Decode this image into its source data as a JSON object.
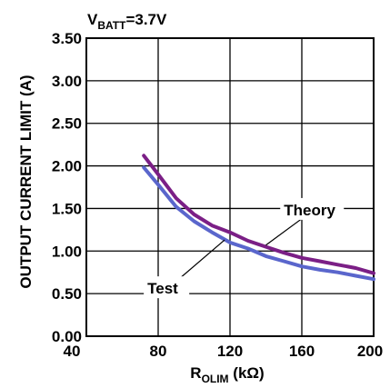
{
  "chart_data": {
    "type": "line",
    "title_main": "V",
    "title_sub": "BATT",
    "title_suffix": "=3.7V",
    "xlabel_main": "R",
    "xlabel_sub": "OLIM",
    "xlabel_suffix": " (kΩ)",
    "ylabel": "OUTPUT CURRENT LIMIT (A)",
    "xlim": [
      40,
      200
    ],
    "ylim": [
      0.0,
      3.5
    ],
    "x_ticks": [
      "40",
      "80",
      "120",
      "160",
      "200"
    ],
    "x_tick_values": [
      40,
      80,
      120,
      160,
      200
    ],
    "y_ticks": [
      "0.00",
      "0.50",
      "1.00",
      "1.50",
      "2.00",
      "2.50",
      "3.00",
      "3.50"
    ],
    "y_tick_values": [
      0,
      0.5,
      1.0,
      1.5,
      2.0,
      2.5,
      3.0,
      3.5
    ],
    "grid": true,
    "series": [
      {
        "name": "Theory",
        "color": "#7b1f86",
        "x": [
          72,
          80,
          90,
          100,
          110,
          120,
          130,
          140,
          150,
          160,
          170,
          180,
          190,
          200
        ],
        "y": [
          2.12,
          1.9,
          1.62,
          1.43,
          1.3,
          1.22,
          1.12,
          1.05,
          0.98,
          0.92,
          0.88,
          0.84,
          0.8,
          0.74
        ]
      },
      {
        "name": "Test",
        "color": "#5a66cc",
        "x": [
          72,
          80,
          90,
          100,
          110,
          120,
          130,
          140,
          150,
          160,
          170,
          180,
          190,
          200
        ],
        "y": [
          1.98,
          1.78,
          1.52,
          1.35,
          1.22,
          1.1,
          1.03,
          0.94,
          0.88,
          0.82,
          0.78,
          0.75,
          0.71,
          0.67
        ]
      }
    ],
    "annotations": [
      {
        "text": "Theory",
        "x": 150,
        "y": 1.42,
        "arrow_to": [
          140,
          1.07
        ]
      },
      {
        "text": "Test",
        "x": 74,
        "y": 0.5,
        "arrow_to": [
          117,
          1.13
        ]
      }
    ]
  }
}
